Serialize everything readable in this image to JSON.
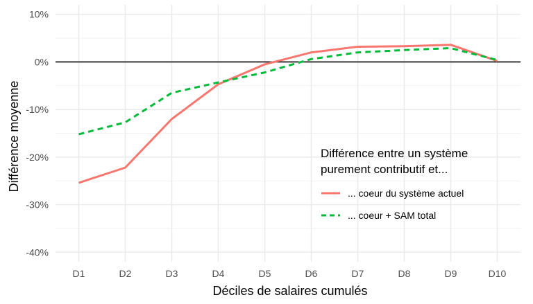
{
  "chart_data": {
    "type": "line",
    "categories": [
      "D1",
      "D2",
      "D3",
      "D4",
      "D5",
      "D6",
      "D7",
      "D8",
      "D9",
      "D10"
    ],
    "series": [
      {
        "name": "... coeur du système actuel",
        "values": [
          -25.4,
          -22.2,
          -12.0,
          -4.7,
          -0.5,
          2.0,
          3.2,
          3.3,
          3.6,
          0.2
        ],
        "color": "#F8766D",
        "dash": "solid"
      },
      {
        "name": "... coeur + SAM total",
        "values": [
          -15.2,
          -12.7,
          -6.5,
          -4.3,
          -2.2,
          0.6,
          2.0,
          2.5,
          2.9,
          0.4
        ],
        "color": "#00BA38",
        "dash": "dashed"
      }
    ],
    "y_ticks": [
      10,
      0,
      -10,
      -20,
      -30,
      -40
    ],
    "y_tick_labels": [
      "10%",
      "0%",
      "-10%",
      "-20%",
      "-30%",
      "-40%"
    ],
    "ylim": [
      -42,
      12
    ],
    "xlabel": "Déciles de salaires cumulés",
    "ylabel": "Différence moyenne",
    "legend_title_line1": "Différence entre un système",
    "legend_title_line2": "purement contributif et...",
    "legend_position": "inside-right",
    "zero_line": true,
    "grid": true
  }
}
